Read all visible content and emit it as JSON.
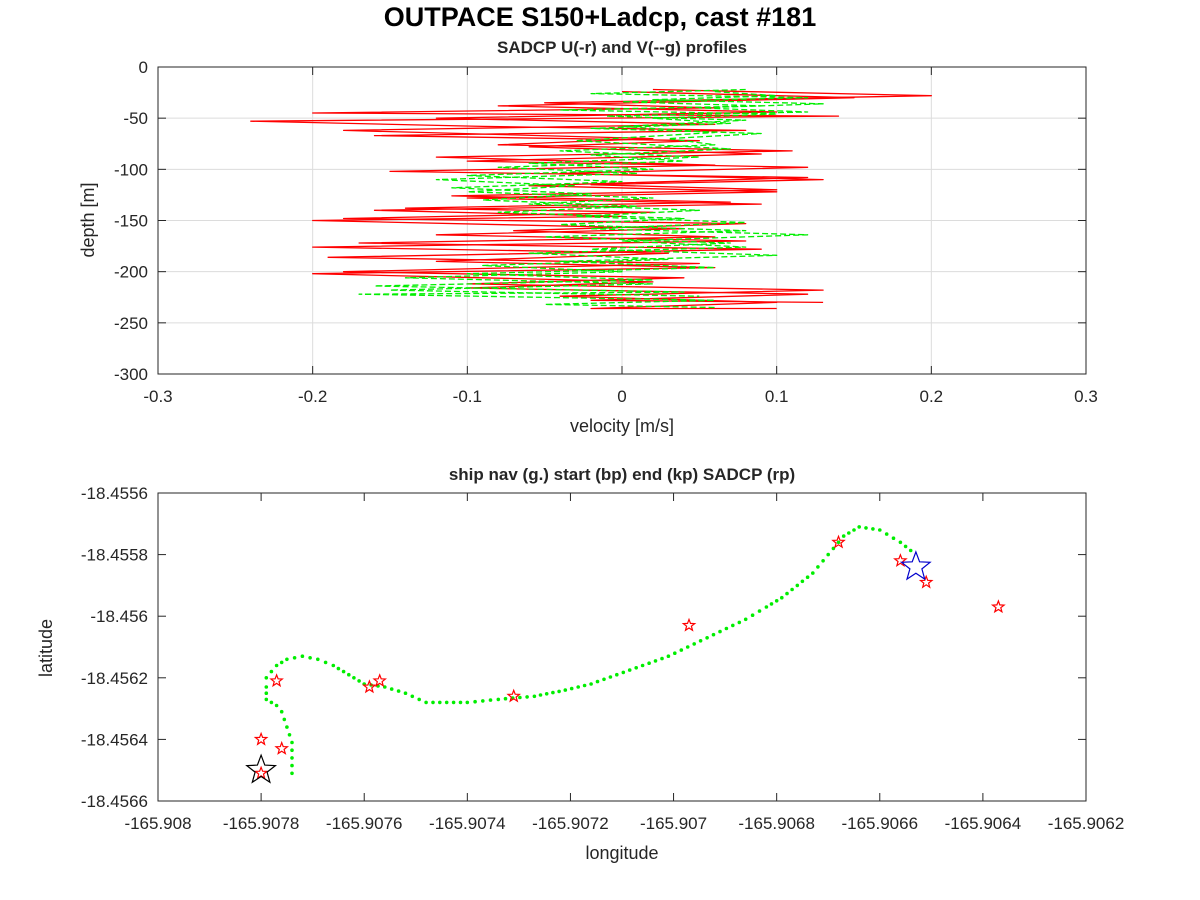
{
  "figure": {
    "suptitle": "OUTPACE S150+Ladcp, cast #181"
  },
  "chart_data": [
    {
      "type": "line",
      "title": "SADCP U(-r) and V(--g) profiles",
      "xlabel": "velocity [m/s]",
      "ylabel": "depth [m]",
      "xlim": [
        -0.3,
        0.3
      ],
      "ylim": [
        -300,
        0
      ],
      "xticks": [
        "-0.3",
        "-0.2",
        "-0.1",
        "0",
        "0.1",
        "0.2",
        "0.3"
      ],
      "yticks": [
        "-300",
        "-250",
        "-200",
        "-150",
        "-100",
        "-50",
        "0"
      ],
      "grid": true,
      "colors": {
        "U": "#ff0000",
        "V": "#00ee00"
      },
      "series": [
        {
          "key": "U",
          "style": "solid",
          "points": [
            [
              0.02,
              -22
            ],
            [
              0.2,
              -28
            ],
            [
              -0.05,
              -35
            ],
            [
              0.06,
              -40
            ],
            [
              -0.2,
              -45
            ],
            [
              0.14,
              -48
            ],
            [
              -0.24,
              -53
            ],
            [
              -0.09,
              -58
            ],
            [
              0.08,
              -62
            ],
            [
              -0.16,
              -67
            ],
            [
              0.05,
              -72
            ],
            [
              -0.06,
              -78
            ],
            [
              0.09,
              -85
            ],
            [
              -0.1,
              -92
            ],
            [
              0.12,
              -98
            ],
            [
              -0.04,
              -104
            ],
            [
              0.13,
              -110
            ],
            [
              -0.02,
              -115
            ],
            [
              0.1,
              -120
            ],
            [
              -0.11,
              -126
            ],
            [
              0.07,
              -132
            ],
            [
              -0.14,
              -138
            ],
            [
              0.02,
              -142
            ],
            [
              -0.18,
              -148
            ],
            [
              0.08,
              -153
            ],
            [
              -0.07,
              -160
            ],
            [
              0.06,
              -166
            ],
            [
              -0.17,
              -172
            ],
            [
              0.09,
              -178
            ],
            [
              -0.19,
              -186
            ],
            [
              0.05,
              -192
            ],
            [
              -0.18,
              -200
            ],
            [
              0.04,
              -206
            ],
            [
              -0.1,
              -212
            ],
            [
              0.13,
              -218
            ],
            [
              -0.04,
              -224
            ],
            [
              0.1,
              -230
            ],
            [
              -0.02,
              -236
            ],
            [
              0.1,
              -236
            ]
          ]
        },
        {
          "key": "U2",
          "style": "solid",
          "points": [
            [
              0.0,
              -24
            ],
            [
              0.15,
              -30
            ],
            [
              -0.08,
              -38
            ],
            [
              0.1,
              -44
            ],
            [
              -0.12,
              -50
            ],
            [
              0.06,
              -56
            ],
            [
              -0.18,
              -62
            ],
            [
              0.02,
              -70
            ],
            [
              -0.08,
              -76
            ],
            [
              0.11,
              -82
            ],
            [
              -0.12,
              -88
            ],
            [
              0.06,
              -96
            ],
            [
              -0.15,
              -102
            ],
            [
              0.12,
              -108
            ],
            [
              -0.06,
              -116
            ],
            [
              0.1,
              -122
            ],
            [
              -0.1,
              -128
            ],
            [
              0.09,
              -134
            ],
            [
              -0.16,
              -140
            ],
            [
              0.0,
              -146
            ],
            [
              -0.2,
              -150
            ],
            [
              0.04,
              -158
            ],
            [
              -0.12,
              -164
            ],
            [
              0.08,
              -170
            ],
            [
              -0.2,
              -176
            ],
            [
              0.03,
              -182
            ],
            [
              -0.12,
              -190
            ],
            [
              0.06,
              -196
            ],
            [
              -0.2,
              -202
            ],
            [
              0.02,
              -210
            ],
            [
              -0.1,
              -216
            ],
            [
              0.12,
              -222
            ],
            [
              -0.02,
              -228
            ],
            [
              0.13,
              -230
            ]
          ]
        },
        {
          "key": "V",
          "style": "dashed",
          "points": [
            [
              0.08,
              -22
            ],
            [
              -0.02,
              -26
            ],
            [
              0.12,
              -30
            ],
            [
              0.0,
              -34
            ],
            [
              0.09,
              -38
            ],
            [
              -0.04,
              -42
            ],
            [
              0.1,
              -46
            ],
            [
              0.02,
              -50
            ],
            [
              0.07,
              -55
            ],
            [
              -0.02,
              -60
            ],
            [
              0.09,
              -65
            ],
            [
              0.03,
              -70
            ],
            [
              0.06,
              -76
            ],
            [
              -0.04,
              -82
            ],
            [
              0.05,
              -88
            ],
            [
              -0.06,
              -94
            ],
            [
              0.02,
              -100
            ],
            [
              -0.1,
              -106
            ],
            [
              0.0,
              -112
            ],
            [
              -0.11,
              -118
            ],
            [
              -0.02,
              -124
            ],
            [
              -0.09,
              -130
            ],
            [
              0.01,
              -136
            ],
            [
              -0.08,
              -142
            ],
            [
              0.04,
              -148
            ],
            [
              -0.04,
              -154
            ],
            [
              0.08,
              -160
            ],
            [
              -0.05,
              -166
            ],
            [
              0.07,
              -172
            ],
            [
              -0.02,
              -178
            ],
            [
              0.1,
              -184
            ],
            [
              -0.04,
              -190
            ],
            [
              0.06,
              -196
            ],
            [
              -0.1,
              -202
            ],
            [
              0.02,
              -208
            ],
            [
              -0.16,
              -214
            ],
            [
              0.04,
              -220
            ],
            [
              -0.17,
              -222
            ],
            [
              0.06,
              -228
            ],
            [
              -0.05,
              -232
            ],
            [
              0.06,
              -235
            ]
          ]
        },
        {
          "key": "V2",
          "style": "dashed",
          "points": [
            [
              0.06,
              -24
            ],
            [
              0.1,
              -28
            ],
            [
              0.02,
              -32
            ],
            [
              0.13,
              -36
            ],
            [
              0.05,
              -40
            ],
            [
              0.12,
              -44
            ],
            [
              -0.01,
              -48
            ],
            [
              0.08,
              -52
            ],
            [
              0.0,
              -58
            ],
            [
              0.06,
              -64
            ],
            [
              -0.03,
              -72
            ],
            [
              0.07,
              -80
            ],
            [
              -0.02,
              -86
            ],
            [
              0.04,
              -92
            ],
            [
              -0.08,
              -98
            ],
            [
              0.01,
              -104
            ],
            [
              -0.12,
              -110
            ],
            [
              -0.03,
              -116
            ],
            [
              -0.1,
              -122
            ],
            [
              0.02,
              -128
            ],
            [
              -0.06,
              -134
            ],
            [
              0.05,
              -140
            ],
            [
              -0.03,
              -146
            ],
            [
              0.08,
              -152
            ],
            [
              -0.02,
              -158
            ],
            [
              0.12,
              -164
            ],
            [
              0.0,
              -170
            ],
            [
              0.08,
              -176
            ],
            [
              -0.06,
              -182
            ],
            [
              0.03,
              -188
            ],
            [
              -0.09,
              -194
            ],
            [
              0.0,
              -200
            ],
            [
              -0.14,
              -206
            ],
            [
              0.02,
              -212
            ],
            [
              -0.15,
              -218
            ],
            [
              0.05,
              -224
            ]
          ]
        }
      ]
    },
    {
      "type": "scatter",
      "title": "ship nav (g.) start (bp) end (kp) SADCP (rp)",
      "xlabel": "longitude",
      "ylabel": "latitude",
      "xlim": [
        -165.908,
        -165.9062
      ],
      "ylim": [
        -18.4566,
        -18.4556
      ],
      "xticks": [
        "-165.908",
        "-165.9078",
        "-165.9076",
        "-165.9074",
        "-165.9072",
        "-165.907",
        "-165.9068",
        "-165.9066",
        "-165.9064",
        "-165.9062"
      ],
      "yticks": [
        "-18.4566",
        "-18.4564",
        "-18.4562",
        "-18.456",
        "-18.4558",
        "-18.4556"
      ],
      "grid": false,
      "colors": {
        "nav": "#00ee00",
        "sadcp": "#ff0000",
        "start": "#0000cc",
        "end": "#000000"
      },
      "nav_track": [
        [
          -165.90774,
          -18.45651
        ],
        [
          -165.90774,
          -18.45646
        ],
        [
          -165.90774,
          -18.45641
        ],
        [
          -165.90775,
          -18.45636
        ],
        [
          -165.90776,
          -18.45631
        ],
        [
          -165.90777,
          -18.45629
        ],
        [
          -165.90779,
          -18.45627
        ],
        [
          -165.90779,
          -18.45623
        ],
        [
          -165.90779,
          -18.4562
        ],
        [
          -165.90778,
          -18.45618
        ],
        [
          -165.90777,
          -18.45616
        ],
        [
          -165.90775,
          -18.45614
        ],
        [
          -165.90772,
          -18.45613
        ],
        [
          -165.90769,
          -18.45614
        ],
        [
          -165.90766,
          -18.45616
        ],
        [
          -165.90763,
          -18.45619
        ],
        [
          -165.9076,
          -18.45622
        ],
        [
          -165.90756,
          -18.45623
        ],
        [
          -165.90752,
          -18.45625
        ],
        [
          -165.90748,
          -18.45628
        ],
        [
          -165.90744,
          -18.45628
        ],
        [
          -165.9074,
          -18.45628
        ],
        [
          -165.90734,
          -18.45627
        ],
        [
          -165.90727,
          -18.45626
        ],
        [
          -165.90721,
          -18.45624
        ],
        [
          -165.90716,
          -18.45622
        ],
        [
          -165.90711,
          -18.45619
        ],
        [
          -165.90706,
          -18.45616
        ],
        [
          -165.90701,
          -18.45613
        ],
        [
          -165.90696,
          -18.45609
        ],
        [
          -165.90691,
          -18.45605
        ],
        [
          -165.90686,
          -18.45601
        ],
        [
          -165.90682,
          -18.45597
        ],
        [
          -165.90679,
          -18.45594
        ],
        [
          -165.90676,
          -18.4559
        ],
        [
          -165.90673,
          -18.45586
        ],
        [
          -165.90671,
          -18.45582
        ],
        [
          -165.90669,
          -18.45578
        ],
        [
          -165.90667,
          -18.45574
        ],
        [
          -165.90664,
          -18.45571
        ],
        [
          -165.9066,
          -18.45572
        ],
        [
          -165.90656,
          -18.45576
        ],
        [
          -165.90653,
          -18.4558
        ]
      ],
      "sadcp_points": [
        [
          -165.9078,
          -18.45651
        ],
        [
          -165.90776,
          -18.45643
        ],
        [
          -165.9078,
          -18.4564
        ],
        [
          -165.90777,
          -18.45621
        ],
        [
          -165.90759,
          -18.45623
        ],
        [
          -165.90757,
          -18.45621
        ],
        [
          -165.90731,
          -18.45626
        ],
        [
          -165.90697,
          -18.45603
        ],
        [
          -165.90668,
          -18.45576
        ],
        [
          -165.90656,
          -18.45582
        ],
        [
          -165.90651,
          -18.45589
        ],
        [
          -165.90637,
          -18.45597
        ]
      ],
      "start_point": [
        -165.90653,
        -18.45584
      ],
      "end_point": [
        -165.9078,
        -18.4565
      ]
    }
  ]
}
